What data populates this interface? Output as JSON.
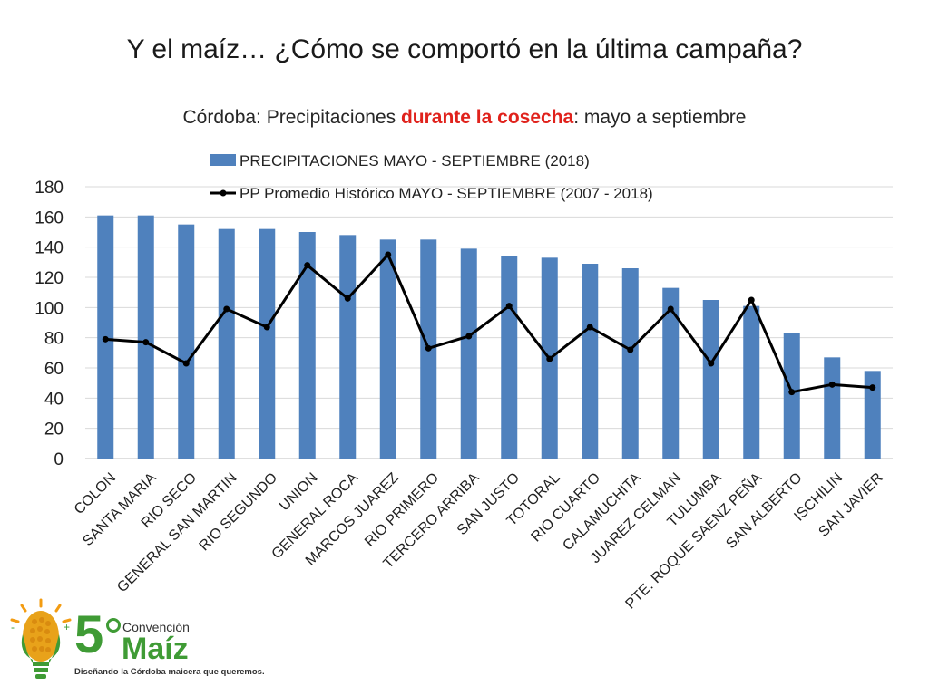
{
  "slide": {
    "title": "Y el maíz… ¿Cómo se comportó en la última campaña?"
  },
  "chart_header": {
    "prefix": "Córdoba: Precipitaciones ",
    "highlight": "durante la cosecha",
    "suffix": ": mayo a septiembre"
  },
  "chart_data": {
    "type": "bar",
    "title": "Córdoba: Precipitaciones durante la cosecha: mayo a septiembre",
    "xlabel": "",
    "ylabel": "",
    "ylim": [
      0,
      180
    ],
    "yticks": [
      "0",
      "20",
      "40",
      "60",
      "80",
      "100",
      "120",
      "140",
      "160",
      "180"
    ],
    "grid": true,
    "legend_position": "top",
    "categories": [
      "COLON",
      "SANTA MARIA",
      "RIO SECO",
      "GENERAL SAN MARTIN",
      "RIO SEGUNDO",
      "UNION",
      "GENERAL ROCA",
      "MARCOS JUAREZ",
      "RIO PRIMERO",
      "TERCERO ARRIBA",
      "SAN JUSTO",
      "TOTORAL",
      "RIO CUARTO",
      "CALAMUCHITA",
      "JUAREZ CELMAN",
      "TULUMBA",
      "PTE. ROQUE SAENZ PEÑA",
      "SAN ALBERTO",
      "ISCHILIN",
      "SAN JAVIER"
    ],
    "series": [
      {
        "name": "PRECIPITACIONES MAYO - SEPTIEMBRE (2018)",
        "kind": "bar",
        "color": "#4f81bd",
        "values": [
          161,
          161,
          155,
          152,
          152,
          150,
          148,
          145,
          145,
          139,
          134,
          133,
          129,
          126,
          113,
          105,
          101,
          83,
          67,
          58
        ]
      },
      {
        "name": "PP Promedio Histórico MAYO - SEPTIEMBRE (2007 - 2018)",
        "kind": "line",
        "color": "#000000",
        "values": [
          79,
          77,
          63,
          99,
          87,
          128,
          106,
          135,
          73,
          81,
          101,
          66,
          87,
          72,
          99,
          63,
          105,
          44,
          49,
          47
        ]
      }
    ]
  },
  "logo": {
    "number": "5",
    "conv": "Convención",
    "brand": "Maíz",
    "tagline": "Diseñando la Córdoba maicera que queremos."
  },
  "colors": {
    "bar": "#4f81bd",
    "line": "#000000",
    "highlight": "#e0221c",
    "logo_green": "#3f9b35",
    "logo_orange": "#f39c12"
  }
}
